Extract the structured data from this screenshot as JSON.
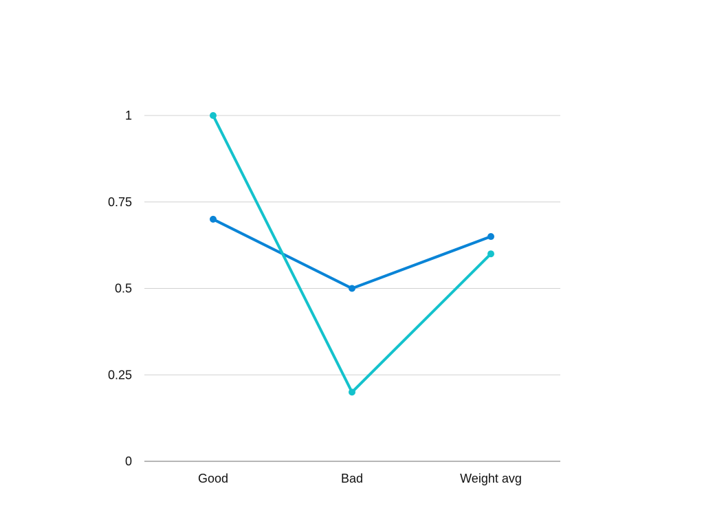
{
  "chart_data": {
    "type": "line",
    "categories": [
      "Good",
      "Bad",
      "Weight avg"
    ],
    "series": [
      {
        "values": [
          0.7,
          0.5,
          0.65
        ],
        "color": "#0a84d6"
      },
      {
        "values": [
          1.0,
          0.2,
          0.6
        ],
        "color": "#14c2cc"
      }
    ],
    "ylim": [
      0,
      1
    ],
    "yticks": [
      0,
      0.25,
      0.5,
      0.75,
      1
    ],
    "ytick_labels": [
      "0",
      "0.25",
      "0.5",
      "0.75",
      "1"
    ],
    "grid": true,
    "legend": "none",
    "title": "",
    "xlabel": "",
    "ylabel": ""
  }
}
